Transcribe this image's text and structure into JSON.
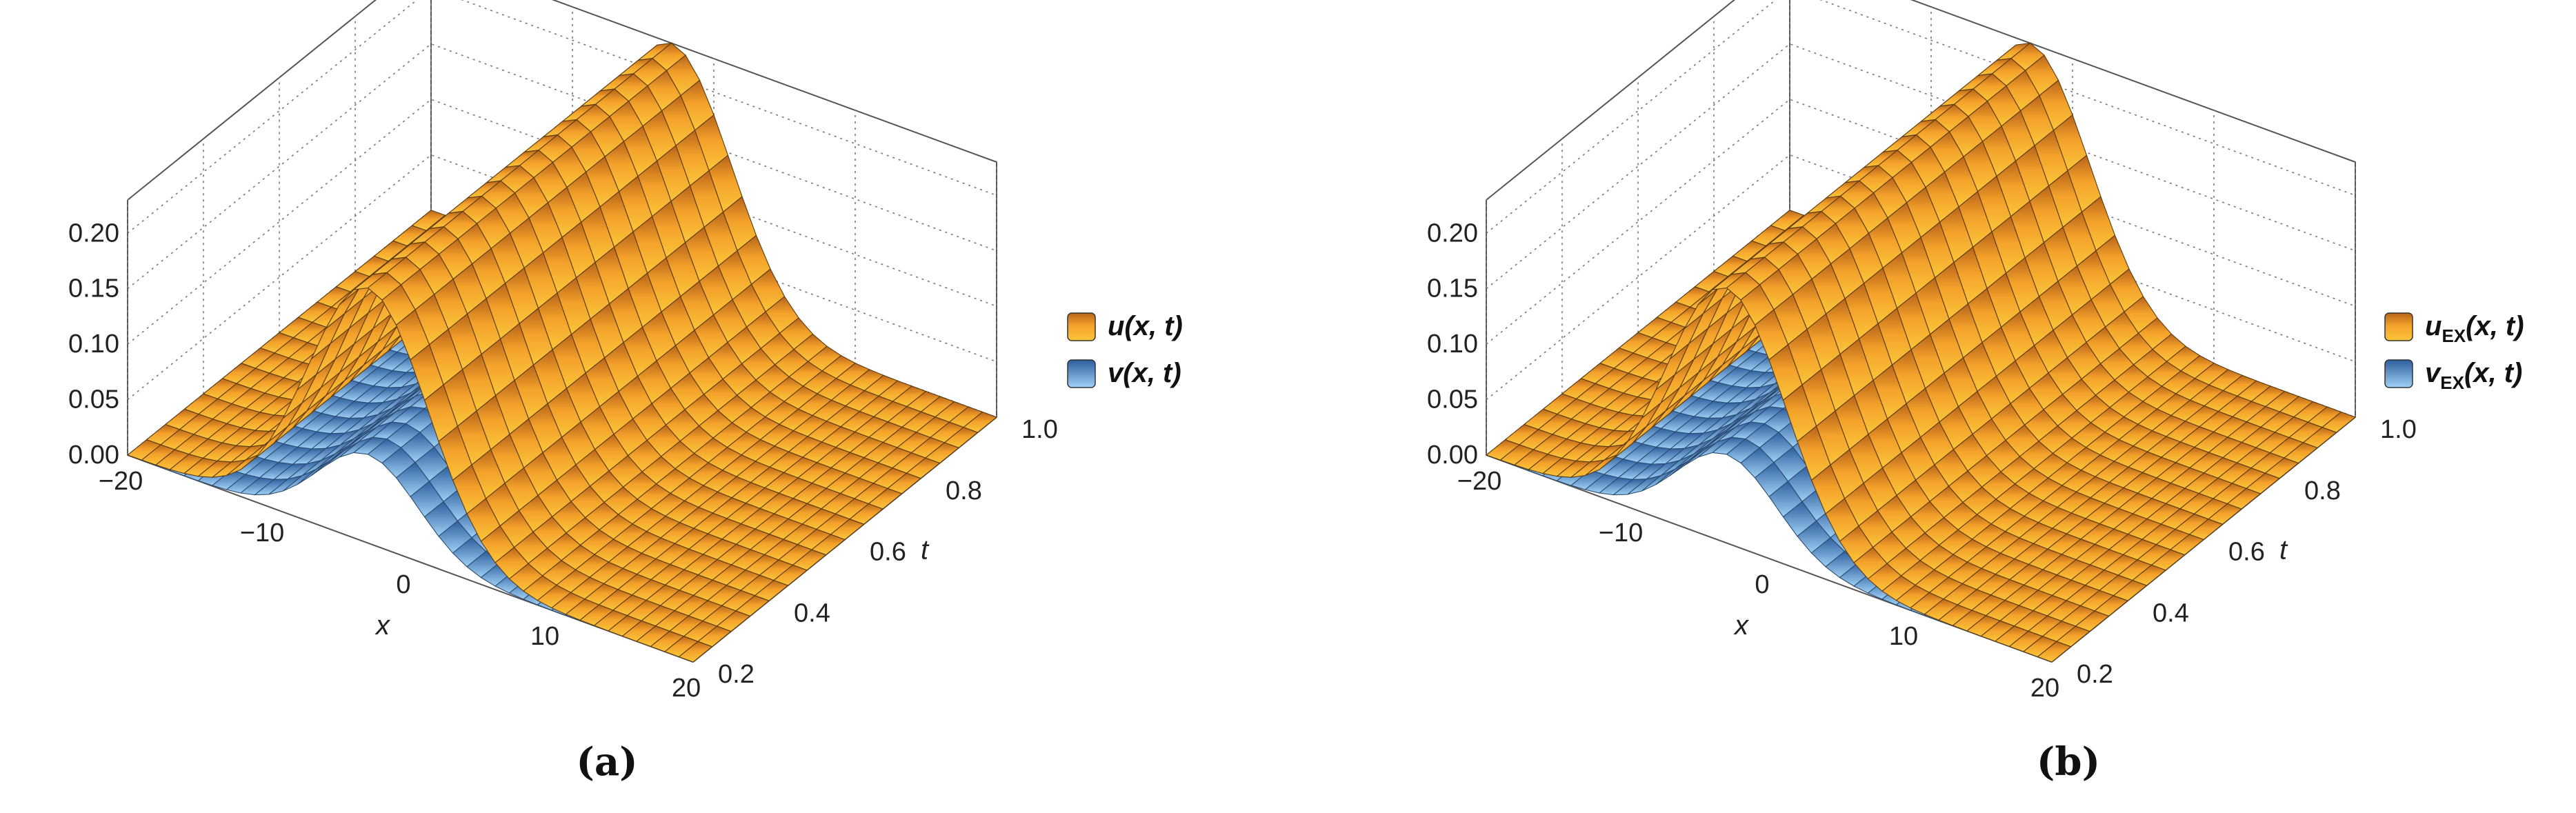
{
  "chart_data": [
    {
      "type": "surface3d",
      "panel": "a",
      "caption": "(a)",
      "xlabel": "x",
      "ylabel": "t",
      "zlabel": "",
      "x_range": [
        -20,
        20
      ],
      "t_range": [
        0.2,
        1.0
      ],
      "z_range": [
        0,
        0.23
      ],
      "x_ticks": [
        "−20",
        "−10",
        "0",
        "10",
        "20"
      ],
      "x_tick_values": [
        -20,
        -10,
        0,
        10,
        20
      ],
      "t_ticks": [
        "0.2",
        "0.4",
        "0.6",
        "0.8",
        "1.0"
      ],
      "t_tick_values": [
        0.2,
        0.4,
        0.6,
        0.8,
        1.0
      ],
      "z_ticks": [
        "0.00",
        "0.05",
        "0.10",
        "0.15",
        "0.20"
      ],
      "z_tick_values": [
        0,
        0.05,
        0.1,
        0.15,
        0.2
      ],
      "series": [
        {
          "name": "u(x, t)",
          "peak": 0.23,
          "center_x": -3,
          "width": 6,
          "color": "#f5a623"
        },
        {
          "name": "v(x, t)",
          "peak": 0.08,
          "center_x": -3,
          "width": 5,
          "color": "#6aaee8"
        }
      ],
      "legend": [
        {
          "base": "u",
          "sub": "",
          "args": "(x, t)",
          "color": "#f5a623"
        },
        {
          "base": "v",
          "sub": "",
          "args": "(x, t)",
          "color": "#6aaee8"
        }
      ]
    },
    {
      "type": "surface3d",
      "panel": "b",
      "caption": "(b)",
      "xlabel": "x",
      "ylabel": "t",
      "zlabel": "",
      "x_range": [
        -20,
        20
      ],
      "t_range": [
        0.2,
        1.0
      ],
      "z_range": [
        0,
        0.23
      ],
      "x_ticks": [
        "−20",
        "−10",
        "0",
        "10",
        "20"
      ],
      "x_tick_values": [
        -20,
        -10,
        0,
        10,
        20
      ],
      "t_ticks": [
        "0.2",
        "0.4",
        "0.6",
        "0.8",
        "1.0"
      ],
      "t_tick_values": [
        0.2,
        0.4,
        0.6,
        0.8,
        1.0
      ],
      "z_ticks": [
        "0.00",
        "0.05",
        "0.10",
        "0.15",
        "0.20"
      ],
      "z_tick_values": [
        0,
        0.05,
        0.1,
        0.15,
        0.2
      ],
      "series": [
        {
          "name": "u_EX(x, t)",
          "peak": 0.23,
          "center_x": -3,
          "width": 6,
          "color": "#f5a623"
        },
        {
          "name": "v_EX(x, t)",
          "peak": 0.08,
          "center_x": -3,
          "width": 5,
          "color": "#6aaee8"
        }
      ],
      "legend": [
        {
          "base": "u",
          "sub": "EX",
          "args": "(x, t)",
          "color": "#f5a623"
        },
        {
          "base": "v",
          "sub": "EX",
          "args": "(x, t)",
          "color": "#6aaee8"
        }
      ]
    }
  ]
}
